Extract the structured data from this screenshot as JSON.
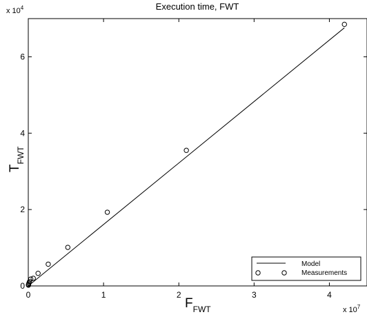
{
  "chart_data": {
    "type": "scatter",
    "title": "Execution time, FWT",
    "xlabel": {
      "main": "F",
      "sub": "FWT"
    },
    "ylabel": {
      "main": "T",
      "sub": "FWT"
    },
    "x_multiplier": {
      "base": "x 10",
      "exponent": "7"
    },
    "y_multiplier": {
      "base": "x 10",
      "exponent": "4"
    },
    "xlim": [
      0,
      45000000
    ],
    "ylim": [
      0,
      70000
    ],
    "xticks": [
      {
        "value": 0,
        "label": "0"
      },
      {
        "value": 10000000,
        "label": "1"
      },
      {
        "value": 20000000,
        "label": "2"
      },
      {
        "value": 30000000,
        "label": "3"
      },
      {
        "value": 40000000,
        "label": "4"
      }
    ],
    "yticks": [
      {
        "value": 0,
        "label": "0"
      },
      {
        "value": 20000,
        "label": "2"
      },
      {
        "value": 40000,
        "label": "4"
      },
      {
        "value": 60000,
        "label": "6"
      }
    ],
    "grid": false,
    "legend_position": "bottom-right",
    "series": [
      {
        "name": "Model",
        "type": "line",
        "x": [
          0,
          42000000
        ],
        "y": [
          0,
          67600
        ]
      },
      {
        "name": "Measurements",
        "type": "scatter",
        "marker": "circle",
        "x": [
          20000,
          40000,
          80000,
          160000,
          330000,
          660000,
          1300000,
          2650000,
          5250000,
          10500000,
          21000000,
          42000000
        ],
        "y": [
          200,
          400,
          700,
          1100,
          1800,
          2000,
          3300,
          5700,
          10100,
          19300,
          35500,
          68500
        ]
      }
    ]
  }
}
